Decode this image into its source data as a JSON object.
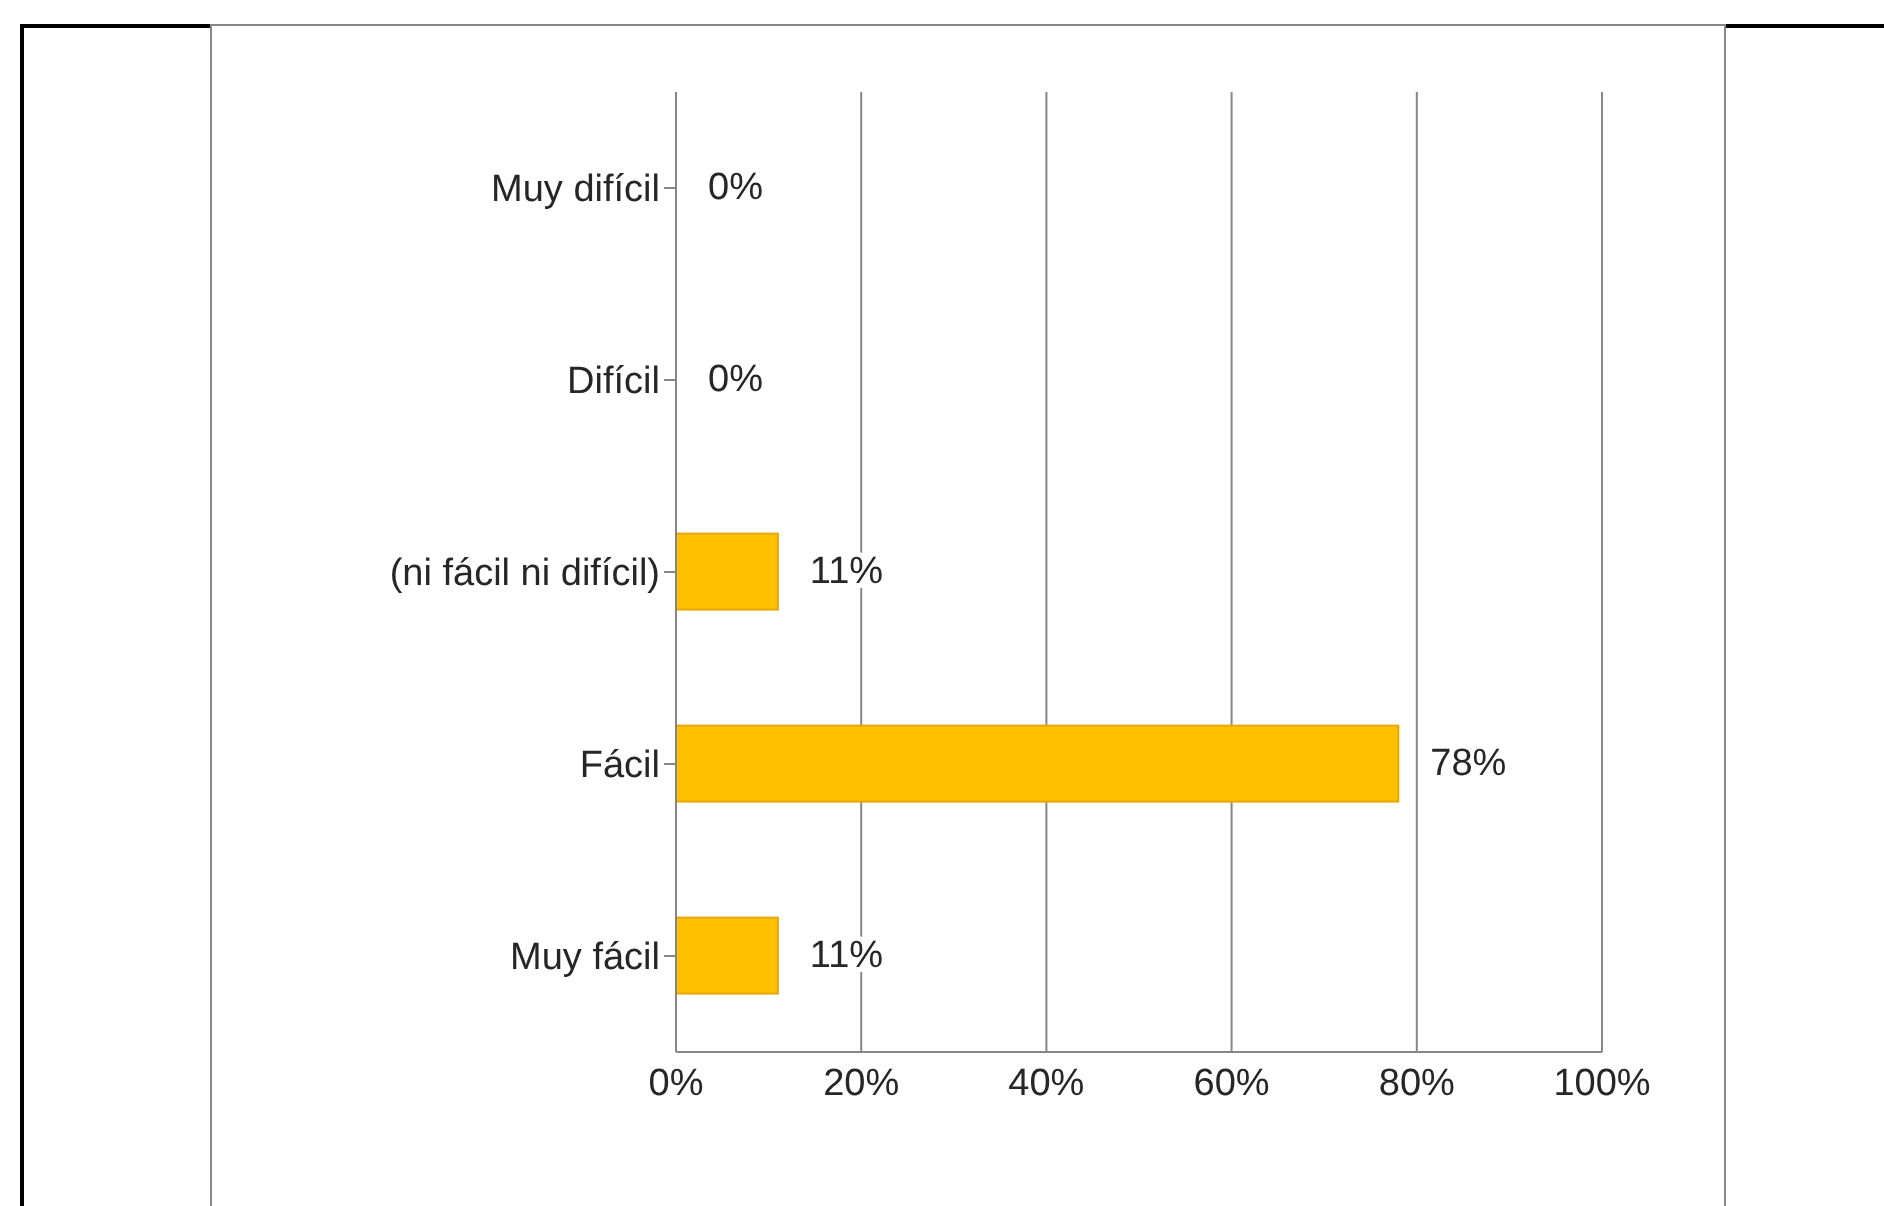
{
  "chart_data": {
    "type": "bar",
    "orientation": "horizontal",
    "categories": [
      "Muy difícil",
      "Difícil",
      "(ni fácil ni difícil)",
      "Fácil",
      "Muy fácil"
    ],
    "values": [
      0,
      0,
      11,
      78,
      11
    ],
    "color": "#ffc000",
    "value_labels": [
      "0%",
      "0%",
      "11%",
      "78%",
      "11%"
    ],
    "xlim": [
      0,
      100
    ],
    "xticks": [
      {
        "value": 0,
        "label": "0%"
      },
      {
        "value": 20,
        "label": "20%"
      },
      {
        "value": 40,
        "label": "40%"
      },
      {
        "value": 60,
        "label": "60%"
      },
      {
        "value": 80,
        "label": "80%"
      },
      {
        "value": 100,
        "label": "100%"
      }
    ],
    "grid": "x",
    "legend": false
  }
}
